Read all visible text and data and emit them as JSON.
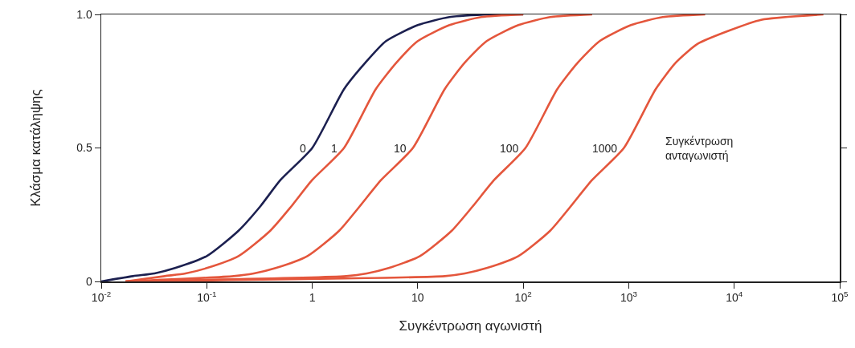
{
  "chart_data": {
    "type": "line",
    "xlabel": "Συγκέντρωση αγωνιστή",
    "ylabel": "Κλάσμα κατάληψης",
    "log": "x",
    "grid": false,
    "legend": false,
    "marker": "none",
    "line_style": "solid",
    "xlim": [
      0.01,
      100000
    ],
    "ylim": [
      0,
      1
    ],
    "xticks": [
      {
        "value": 0.01,
        "label": "10$^{-2}$"
      },
      {
        "value": 0.1,
        "label": "10$^{-1}$"
      },
      1,
      10,
      {
        "value": 100,
        "label": "10$^{2}$"
      },
      {
        "value": 1000,
        "label": "10$^{3}$"
      },
      {
        "value": 10000,
        "label": "10$^{4}$"
      },
      {
        "value": 100000,
        "label": "10$^{5}$"
      }
    ],
    "yticks": [
      0,
      0.5,
      {
        "value": 1,
        "label": "1.0"
      }
    ],
    "series": [
      {
        "name": "0",
        "color": "#1c2050",
        "x": [
          0.01,
          0.02,
          0.032,
          0.05,
          0.1,
          0.2,
          0.32,
          0.5,
          1,
          2,
          3.2,
          5,
          10,
          20,
          50,
          100
        ],
        "values": [
          0,
          0.02,
          0.03,
          0.05,
          0.095,
          0.19,
          0.28,
          0.38,
          0.5,
          0.72,
          0.82,
          0.9,
          0.96,
          0.99,
          1,
          1
        ]
      },
      {
        "name": "1",
        "color": "#e4563c",
        "x": [
          0.017,
          0.04,
          0.063,
          0.1,
          0.2,
          0.4,
          0.63,
          1,
          2,
          4,
          6.3,
          10,
          20,
          40,
          100
        ],
        "values": [
          0,
          0.02,
          0.03,
          0.05,
          0.095,
          0.19,
          0.28,
          0.38,
          0.5,
          0.72,
          0.82,
          0.9,
          0.96,
          0.99,
          1
        ]
      },
      {
        "name": "10",
        "color": "#e4563c",
        "x": [
          0.017,
          0.18,
          0.28,
          0.45,
          0.9,
          1.8,
          2.8,
          4.5,
          9,
          18,
          28,
          45,
          90,
          180,
          450
        ],
        "values": [
          0,
          0.02,
          0.03,
          0.05,
          0.095,
          0.19,
          0.28,
          0.38,
          0.5,
          0.72,
          0.82,
          0.9,
          0.96,
          0.99,
          1
        ]
      },
      {
        "name": "100",
        "color": "#e4563c",
        "x": [
          0.017,
          2.1,
          3.3,
          5.3,
          10.5,
          21,
          33,
          53,
          105,
          210,
          330,
          530,
          1050,
          2100,
          5300
        ],
        "values": [
          0,
          0.02,
          0.03,
          0.05,
          0.095,
          0.19,
          0.28,
          0.38,
          0.5,
          0.72,
          0.82,
          0.9,
          0.96,
          0.99,
          1
        ]
      },
      {
        "name": "1000",
        "color": "#e4563c",
        "x": [
          0.017,
          18,
          28,
          45,
          90,
          180,
          280,
          450,
          900,
          1800,
          2800,
          4500,
          9000,
          18000,
          70000
        ],
        "values": [
          0,
          0.02,
          0.03,
          0.05,
          0.095,
          0.19,
          0.28,
          0.38,
          0.5,
          0.72,
          0.82,
          0.89,
          0.94,
          0.98,
          1
        ]
      }
    ],
    "annotations": [
      "Συγκέντρωση ανταγωνιστή"
    ]
  }
}
